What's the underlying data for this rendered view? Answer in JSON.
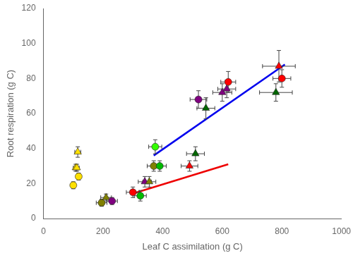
{
  "chart_data": {
    "type": "scatter",
    "xlabel": "Leaf C assimilation (g C)",
    "ylabel": "Root respiration (g C)",
    "xlim": [
      0,
      1000
    ],
    "ylim": [
      0,
      120
    ],
    "xticks": [
      0,
      200,
      400,
      600,
      800,
      1000
    ],
    "yticks": [
      0,
      20,
      40,
      60,
      80,
      100,
      120
    ],
    "grid": false,
    "series": [
      {
        "type": "line",
        "color": "#0000EE",
        "x": [
          370,
          810
        ],
        "values": [
          36,
          88
        ]
      },
      {
        "type": "line",
        "color": "#EE0000",
        "x": [
          295,
          620
        ],
        "values": [
          14,
          31
        ]
      },
      {
        "type": "scatter",
        "x": [
          100,
          118,
          108,
          112,
          115,
          195,
          210,
          230,
          300,
          325,
          340,
          355,
          370,
          390,
          375,
          490,
          510,
          520,
          545,
          600,
          615,
          620,
          780,
          790,
          800
        ],
        "values": [
          19,
          24,
          29,
          29,
          38,
          9,
          12,
          10,
          15,
          13,
          21,
          21,
          30,
          30,
          41,
          30,
          37,
          68,
          63,
          72,
          74,
          78,
          72,
          87,
          80
        ],
        "xerr": [
          8,
          8,
          8,
          8,
          10,
          18,
          18,
          18,
          22,
          20,
          22,
          22,
          22,
          22,
          22,
          28,
          30,
          28,
          30,
          32,
          30,
          25,
          55,
          55,
          30
        ],
        "yerr": [
          2,
          2,
          2,
          2,
          3,
          2,
          2,
          2,
          3,
          3,
          3,
          3,
          3,
          3,
          4,
          3,
          4,
          5,
          6,
          5,
          5,
          6,
          5,
          9,
          5
        ],
        "colors": [
          "#FFE000",
          "#FFE000",
          "#FFE000",
          "#FFE000",
          "#FFE000",
          "#808000",
          "#808000",
          "#800080",
          "#FF0000",
          "#00BB00",
          "#800080",
          "#808000",
          "#808000",
          "#00BB00",
          "#33FF00",
          "#FF0000",
          "#006600",
          "#800080",
          "#006600",
          "#800080",
          "#800080",
          "#FF0000",
          "#006600",
          "#FF0000",
          "#FF0000"
        ],
        "marker": [
          "circle",
          "circle",
          "triangle",
          "triangle",
          "triangle",
          "circle",
          "triangle",
          "circle",
          "circle",
          "circle",
          "triangle",
          "triangle",
          "circle",
          "circle",
          "circle",
          "triangle",
          "triangle",
          "circle",
          "triangle",
          "triangle",
          "triangle",
          "circle",
          "triangle",
          "triangle",
          "circle"
        ]
      }
    ]
  }
}
